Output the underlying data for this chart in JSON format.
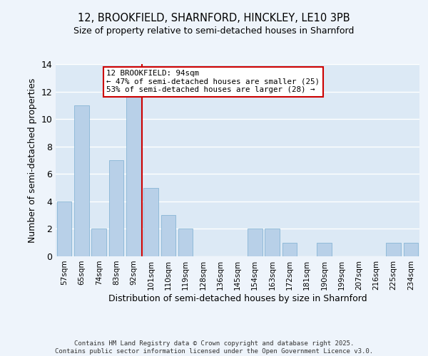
{
  "title_line1": "12, BROOKFIELD, SHARNFORD, HINCKLEY, LE10 3PB",
  "title_line2": "Size of property relative to semi-detached houses in Sharnford",
  "xlabel": "Distribution of semi-detached houses by size in Sharnford",
  "ylabel": "Number of semi-detached properties",
  "categories": [
    "57sqm",
    "65sqm",
    "74sqm",
    "83sqm",
    "92sqm",
    "101sqm",
    "110sqm",
    "119sqm",
    "128sqm",
    "136sqm",
    "145sqm",
    "154sqm",
    "163sqm",
    "172sqm",
    "181sqm",
    "190sqm",
    "199sqm",
    "207sqm",
    "216sqm",
    "225sqm",
    "234sqm"
  ],
  "values": [
    4,
    11,
    2,
    7,
    12,
    5,
    3,
    2,
    0,
    0,
    0,
    2,
    2,
    1,
    0,
    1,
    0,
    0,
    0,
    1,
    1
  ],
  "bar_color": "#b8d0e8",
  "bar_edge_color": "#7aaed0",
  "vline_x": 4.5,
  "vline_color": "#cc0000",
  "annotation_text": "12 BROOKFIELD: 94sqm\n← 47% of semi-detached houses are smaller (25)\n53% of semi-detached houses are larger (28) →",
  "annotation_box_color": "#ffffff",
  "annotation_box_edge": "#cc0000",
  "ylim": [
    0,
    14
  ],
  "yticks": [
    0,
    2,
    4,
    6,
    8,
    10,
    12,
    14
  ],
  "background_color": "#dce9f5",
  "fig_background_color": "#eef4fb",
  "grid_color": "#ffffff",
  "footer": "Contains HM Land Registry data © Crown copyright and database right 2025.\nContains public sector information licensed under the Open Government Licence v3.0."
}
